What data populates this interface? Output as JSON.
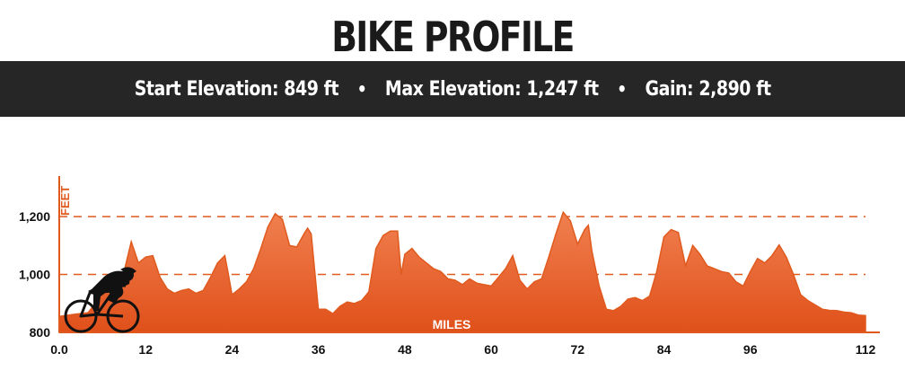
{
  "header": {
    "title": "BIKE PROFILE",
    "stats": [
      {
        "label": "Start Elevation:",
        "value": "849 ft"
      },
      {
        "label": "Max Elevation:",
        "value": "1,247 ft"
      },
      {
        "label": "Gain:",
        "value": "2,890 ft"
      }
    ],
    "separator": "•"
  },
  "icons": {
    "cyclist": "cyclist-silhouette-icon"
  },
  "colors": {
    "fill_top": "#f08050",
    "fill_bottom": "#e0501a",
    "line": "#e05a1e",
    "grid": "#e05a1e",
    "bar": "#262626"
  },
  "chart_data": {
    "type": "area",
    "title": "",
    "xlabel": "MILES",
    "ylabel": "FEET",
    "xlim": [
      0,
      112
    ],
    "ylim": [
      800,
      1340
    ],
    "x_ticks": [
      0,
      12,
      24,
      36,
      48,
      60,
      72,
      84,
      96,
      112
    ],
    "x_tick_labels": [
      "0.0",
      "12",
      "24",
      "36",
      "48",
      "60",
      "72",
      "84",
      "96",
      "112"
    ],
    "y_ticks": [
      800,
      1000,
      1200
    ],
    "y_tick_labels": [
      "800",
      "1,000",
      "1,200"
    ],
    "gridlines_y": [
      1000,
      1200
    ],
    "grid_style": "dashed",
    "x": [
      0,
      2,
      4,
      5,
      6,
      8,
      9,
      10,
      11,
      12,
      13,
      14,
      15,
      16,
      17,
      18,
      19,
      20,
      21,
      22,
      23,
      23.5,
      24,
      25,
      26,
      27,
      28,
      29,
      30,
      31,
      32,
      33,
      34,
      34.5,
      35,
      36,
      37,
      38,
      39,
      40,
      41,
      42,
      43,
      44,
      45,
      46,
      47,
      47.5,
      48,
      49,
      50,
      51,
      52,
      53,
      54,
      55,
      56,
      57,
      58,
      59,
      60,
      61,
      62,
      63,
      64,
      65,
      66,
      67,
      68,
      69,
      70,
      71,
      72,
      73,
      73.5,
      74,
      75,
      76,
      77,
      78,
      79,
      80,
      81,
      82,
      83,
      84,
      85,
      86,
      87,
      88,
      89,
      90,
      91,
      92,
      93,
      94,
      95,
      96,
      97,
      98,
      99,
      100,
      101,
      102,
      103,
      104,
      105,
      106,
      107,
      108,
      109,
      110,
      111,
      112
    ],
    "series": [
      {
        "values": [
          855,
          862,
          868,
          900,
          960,
          1000,
          1010,
          1113,
          1040,
          1060,
          1065,
          990,
          950,
          935,
          945,
          950,
          935,
          945,
          990,
          1040,
          1065,
          1000,
          930,
          950,
          975,
          1020,
          1090,
          1165,
          1210,
          1190,
          1100,
          1095,
          1140,
          1160,
          1140,
          880,
          880,
          865,
          890,
          905,
          900,
          910,
          940,
          1090,
          1135,
          1150,
          1150,
          1000,
          1070,
          1090,
          1060,
          1040,
          1020,
          1010,
          985,
          980,
          965,
          985,
          970,
          965,
          960,
          990,
          1020,
          1065,
          980,
          950,
          975,
          985,
          1060,
          1140,
          1215,
          1185,
          1105,
          1155,
          1170,
          1080,
          960,
          880,
          875,
          890,
          915,
          920,
          910,
          925,
          1010,
          1130,
          1155,
          1145,
          1030,
          1100,
          1070,
          1030,
          1020,
          1010,
          1005,
          975,
          960,
          1010,
          1055,
          1040,
          1065,
          1102,
          1060,
          1000,
          930,
          910,
          895,
          880,
          876,
          875,
          870,
          868,
          860,
          858
        ]
      }
    ]
  }
}
